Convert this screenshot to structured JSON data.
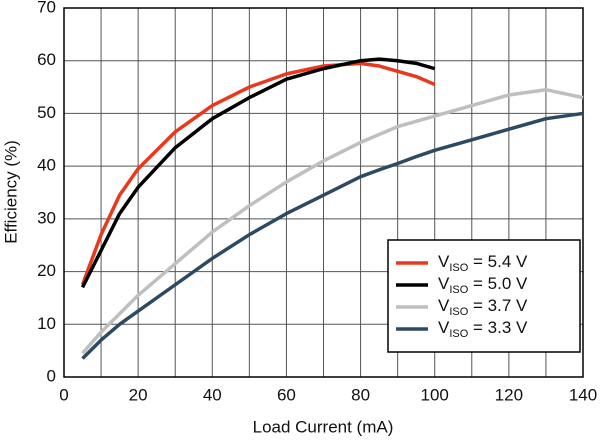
{
  "chart_data": {
    "type": "line",
    "x_label": "Load Current (mA)",
    "y_label": "Efficiency (%)",
    "x": [
      5,
      10,
      15,
      20,
      30,
      40,
      50,
      60,
      70,
      80,
      85,
      90,
      95,
      100,
      110,
      120,
      130,
      140
    ],
    "series": [
      {
        "name": "VISO = 5.4 V",
        "color": "#e8381e",
        "values": [
          17.5,
          27,
          34.5,
          39.5,
          46.5,
          51.5,
          55,
          57.5,
          59,
          59.5,
          59,
          58,
          57,
          55.5,
          null,
          null,
          null,
          null
        ]
      },
      {
        "name": "VISO = 5.0 V",
        "color": "#000000",
        "values": [
          17,
          24,
          31,
          36,
          43.5,
          49,
          53,
          56.5,
          58.5,
          60,
          60.3,
          60,
          59.5,
          58.5,
          null,
          null,
          null,
          null
        ]
      },
      {
        "name": "VISO = 3.7 V",
        "color": "#bfbfbf",
        "values": [
          4.5,
          8.5,
          12,
          15.5,
          21.5,
          27.5,
          32.5,
          37,
          41,
          44.5,
          46,
          47.5,
          48.5,
          49.5,
          51.5,
          53.5,
          54.5,
          53
        ]
      },
      {
        "name": "VISO = 3.3 V",
        "color": "#2e4a62",
        "values": [
          3.5,
          7,
          10,
          12.5,
          17.5,
          22.5,
          27,
          31,
          34.5,
          38,
          39.3,
          40.5,
          41.8,
          43,
          45,
          47,
          49,
          50
        ]
      }
    ],
    "xlim": [
      0,
      140
    ],
    "ylim": [
      0,
      70
    ],
    "xticks": [
      0,
      20,
      40,
      60,
      80,
      100,
      120,
      140
    ],
    "yticks": [
      0,
      10,
      20,
      30,
      40,
      50,
      60,
      70
    ],
    "grid": true,
    "legend": "lower right"
  }
}
